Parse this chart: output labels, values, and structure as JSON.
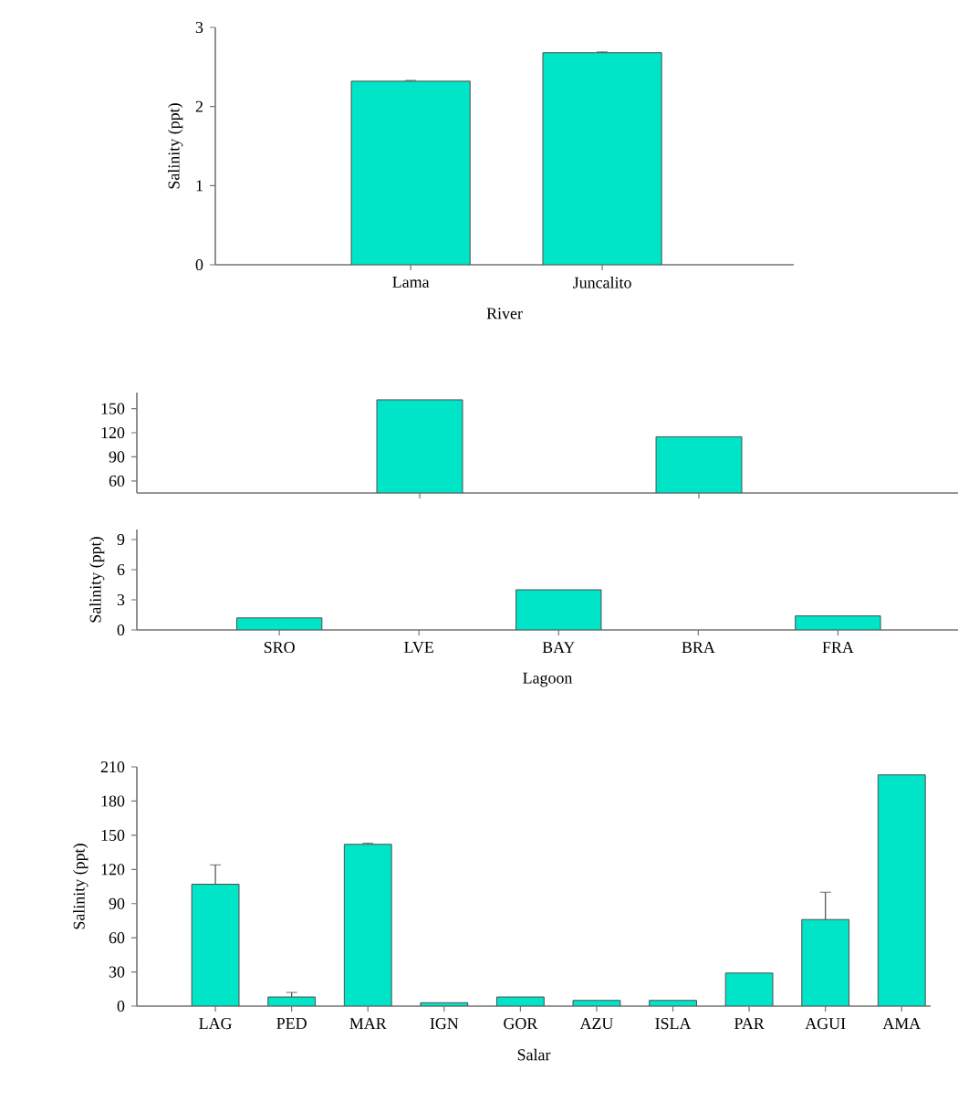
{
  "chart_data": [
    {
      "type": "bar",
      "categories": [
        "Lama",
        "Juncalito"
      ],
      "values": [
        2.32,
        2.68
      ],
      "errors": [
        0.01,
        0.01
      ],
      "color": "#00e5c8",
      "ylim": [
        0,
        3
      ],
      "yticks": [
        0,
        1,
        2,
        3
      ],
      "xlabel": "River",
      "ylabel": "Salinity (ppt)"
    },
    {
      "type": "bar",
      "categories": [
        null,
        null
      ],
      "values": [
        161,
        115
      ],
      "color": "#00e5c8",
      "ylim": [
        45,
        170
      ],
      "yticks": [
        60,
        90,
        120,
        150
      ],
      "tick_labels": "y"
    },
    {
      "type": "bar",
      "categories": [
        "SRO",
        "LVE",
        "BAY",
        "BRA",
        "FRA"
      ],
      "values": [
        1.2,
        null,
        4.0,
        null,
        1.4
      ],
      "color": "#00e5c8",
      "ylim": [
        0,
        10
      ],
      "yticks": [
        0,
        3,
        6,
        9
      ],
      "xlabel": "Lagoon",
      "ylabel": "Salinity (ppt)"
    },
    {
      "type": "bar",
      "categories": [
        "LAG",
        "PED",
        "MAR",
        "IGN",
        "GOR",
        "AZU",
        "ISLA",
        "PAR",
        "AGUI",
        "AMA"
      ],
      "values": [
        107,
        8,
        142,
        3,
        8,
        5,
        5,
        29,
        76,
        203
      ],
      "errors": [
        17,
        4,
        1,
        null,
        null,
        null,
        null,
        null,
        24,
        null
      ],
      "color": "#00e5c8",
      "ylim": [
        0,
        210
      ],
      "yticks": [
        0,
        30,
        60,
        90,
        120,
        150,
        180,
        210
      ],
      "xlabel": "Salar",
      "ylabel": "Salinity (ppt)"
    }
  ]
}
